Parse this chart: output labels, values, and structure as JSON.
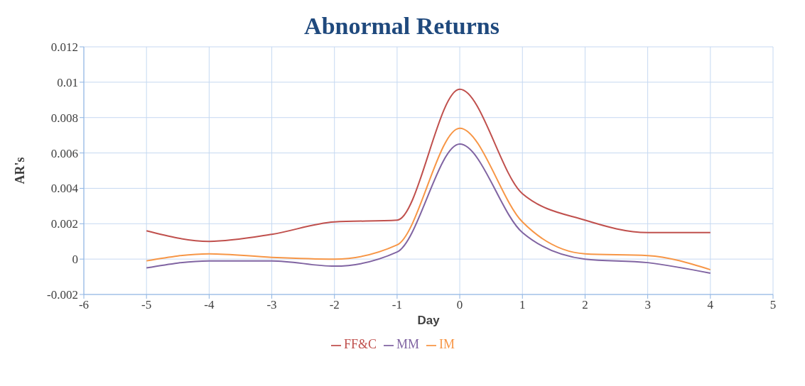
{
  "chart_data": {
    "type": "line",
    "title": "Abnormal Returns",
    "xlabel": "Day",
    "ylabel": "AR's",
    "x": [
      -5,
      -4,
      -3,
      -2,
      -1,
      0,
      1,
      2,
      3,
      4
    ],
    "series": [
      {
        "name": "FF&C",
        "color": "#c0504d",
        "values": [
          0.0016,
          0.001,
          0.0014,
          0.0021,
          0.0022,
          0.0096,
          0.0037,
          0.0022,
          0.0015,
          0.0015
        ]
      },
      {
        "name": "MM",
        "color": "#8064a2",
        "values": [
          -0.0005,
          -0.0001,
          -0.0001,
          -0.0004,
          0.0004,
          0.0065,
          0.0015,
          0.0,
          -0.0002,
          -0.0008
        ]
      },
      {
        "name": "IM",
        "color": "#f79646",
        "values": [
          -0.0001,
          0.0003,
          0.0001,
          0.0,
          0.0008,
          0.0074,
          0.0021,
          0.0003,
          0.0002,
          -0.0006
        ]
      }
    ],
    "xlim": [
      -6,
      5
    ],
    "xticks": [
      -6,
      -5,
      -4,
      -3,
      -2,
      -1,
      0,
      1,
      2,
      3,
      4,
      5
    ],
    "ylim": [
      -0.002,
      0.012
    ],
    "yticks": [
      -0.002,
      0,
      0.002,
      0.004,
      0.006,
      0.008,
      0.01,
      0.012
    ],
    "grid": true,
    "legend": "bottom",
    "marker": "none",
    "line_style": "solid"
  }
}
